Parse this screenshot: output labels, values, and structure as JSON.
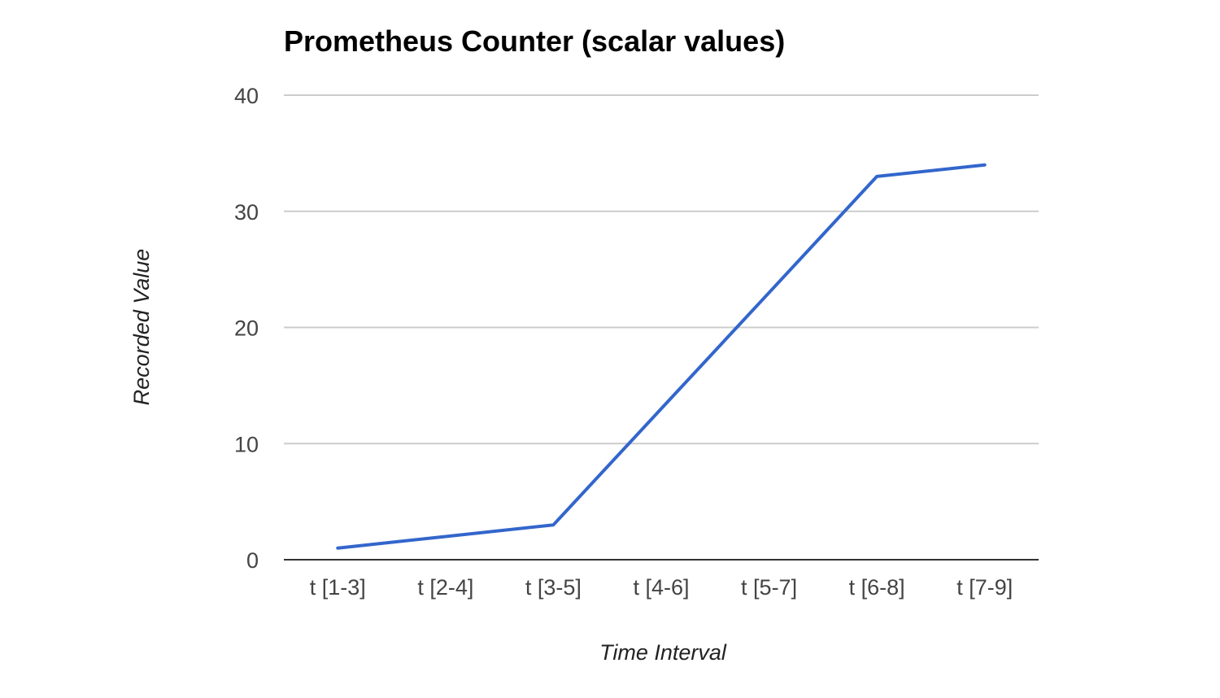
{
  "chart_data": {
    "type": "line",
    "title": "Prometheus Counter (scalar values)",
    "xlabel": "Time Interval",
    "ylabel": "Recorded Value",
    "categories": [
      "t [1-3]",
      "t [2-4]",
      "t [3-5]",
      "t [4-6]",
      "t [5-7]",
      "t [6-8]",
      "t [7-9]"
    ],
    "series": [
      {
        "values": [
          1,
          2,
          3,
          13,
          23,
          33,
          34
        ],
        "color": "#3366cc"
      }
    ],
    "ylim": [
      0,
      40
    ],
    "yticks": [
      0,
      10,
      20,
      30,
      40
    ],
    "grid": true,
    "legend": "none"
  }
}
